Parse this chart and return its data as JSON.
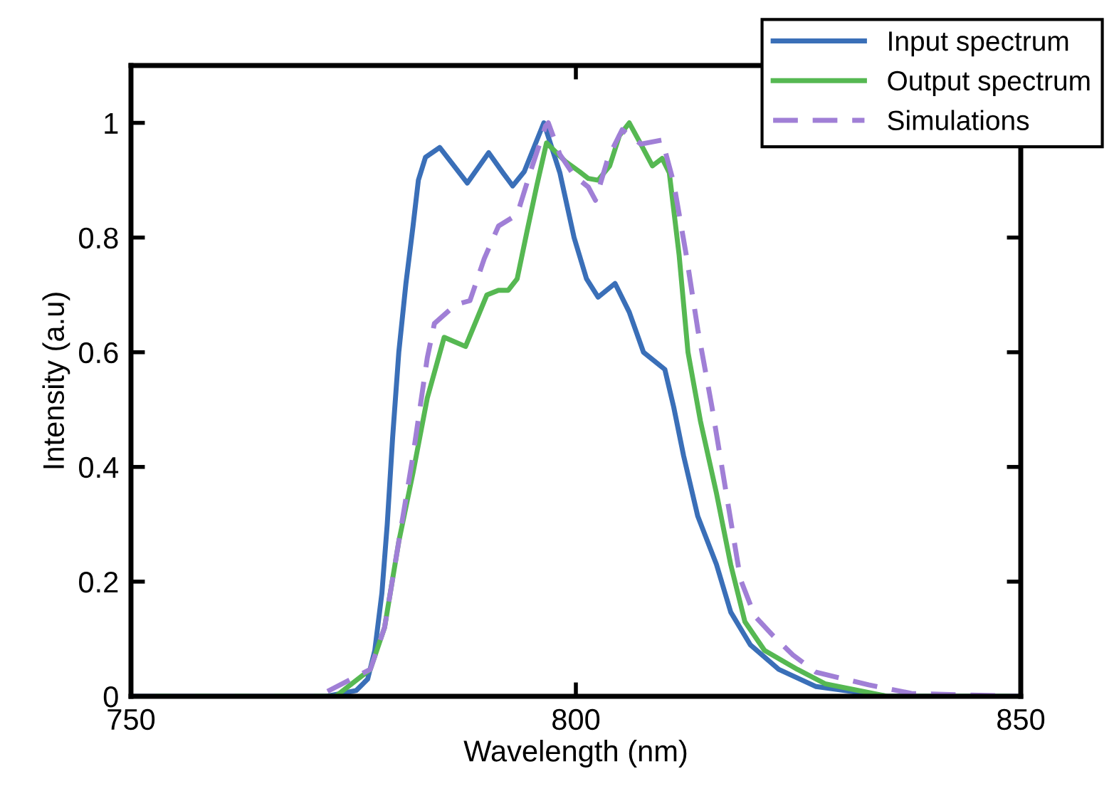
{
  "chart_data": {
    "type": "line",
    "xlabel": "Wavelength (nm)",
    "ylabel": "Intensity (a.u)",
    "xlim": [
      750,
      850
    ],
    "ylim": [
      0,
      1.1
    ],
    "xticks": [
      750,
      800,
      850
    ],
    "yticks": [
      0,
      0.2,
      0.4,
      0.6,
      0.8,
      1
    ],
    "grid": false,
    "legend": "top right",
    "marker": "none",
    "series": [
      {
        "name": "Input spectrum",
        "color": "#3a6fb8",
        "line_style": "solid",
        "x": [
          750,
          772,
          775.3,
          776.6,
          777.4,
          778.2,
          778.8,
          779.4,
          780.1,
          780.9,
          781.7,
          782.3,
          783.1,
          784.7,
          787.8,
          790.2,
          791.8,
          792.9,
          794.2,
          796.4,
          798.2,
          799.8,
          801.2,
          802.5,
          804.4,
          806,
          807.6,
          810,
          811,
          812.1,
          813.7,
          815.8,
          817.4,
          819.6,
          822.8,
          827,
          835,
          850
        ],
        "values": [
          0,
          0,
          0.01,
          0.03,
          0.08,
          0.18,
          0.3,
          0.45,
          0.6,
          0.72,
          0.82,
          0.9,
          0.94,
          0.957,
          0.895,
          0.948,
          0.913,
          0.89,
          0.915,
          1.0,
          0.913,
          0.8,
          0.728,
          0.696,
          0.72,
          0.67,
          0.6,
          0.57,
          0.504,
          0.42,
          0.314,
          0.23,
          0.147,
          0.09,
          0.047,
          0.017,
          0,
          0
        ]
      },
      {
        "name": "Output spectrum",
        "color": "#56b852",
        "line_style": "solid",
        "x": [
          750,
          773,
          776.9,
          778.5,
          780.1,
          781.7,
          783.3,
          785.2,
          787.6,
          790,
          791.3,
          792.4,
          793.4,
          794.5,
          795.6,
          796.7,
          798.8,
          800.4,
          801.4,
          802.5,
          803.8,
          804.9,
          806,
          807.3,
          808.6,
          809.7,
          810.5,
          811.6,
          812.6,
          814,
          815.8,
          817.4,
          819,
          821.2,
          824.9,
          828,
          835,
          850
        ],
        "values": [
          0,
          0,
          0.047,
          0.12,
          0.27,
          0.39,
          0.52,
          0.626,
          0.61,
          0.7,
          0.708,
          0.708,
          0.728,
          0.81,
          0.89,
          0.965,
          0.933,
          0.915,
          0.903,
          0.9,
          0.925,
          0.978,
          1.0,
          0.963,
          0.925,
          0.938,
          0.913,
          0.77,
          0.6,
          0.48,
          0.354,
          0.23,
          0.13,
          0.08,
          0.047,
          0.022,
          0,
          0
        ]
      },
      {
        "name": "Simulations",
        "color": "#a07fd6",
        "line_style": "dashed",
        "x": [
          750,
          771,
          776.9,
          778.5,
          780.1,
          781.7,
          783.3,
          784.1,
          786.5,
          788.1,
          789.7,
          791.3,
          793.4,
          795,
          796.6,
          796.9,
          798.2,
          799.8,
          801.4,
          802.2,
          803.6,
          805.2,
          807.3,
          809.7,
          811,
          812.4,
          813.7,
          815.3,
          816.9,
          818.5,
          820.1,
          822.2,
          824.4,
          827,
          832.9,
          837.7,
          850
        ],
        "values": [
          0,
          0,
          0.047,
          0.12,
          0.27,
          0.42,
          0.59,
          0.65,
          0.683,
          0.69,
          0.763,
          0.82,
          0.84,
          0.92,
          0.995,
          1.0,
          0.945,
          0.908,
          0.888,
          0.865,
          0.938,
          0.988,
          0.963,
          0.97,
          0.895,
          0.77,
          0.64,
          0.504,
          0.354,
          0.204,
          0.14,
          0.105,
          0.072,
          0.042,
          0.02,
          0.005,
          0
        ]
      }
    ]
  }
}
